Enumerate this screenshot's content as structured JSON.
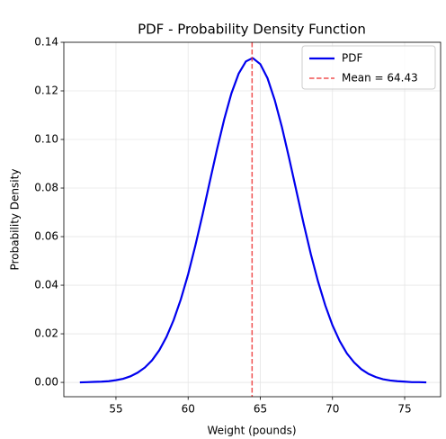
{
  "chart_data": {
    "type": "line",
    "title": "PDF - Probability Density Function",
    "xlabel": "Weight (pounds)",
    "ylabel": "Probability Density",
    "x": [
      52.5,
      53,
      53.5,
      54,
      54.5,
      55,
      55.5,
      56,
      56.5,
      57,
      57.5,
      58,
      58.5,
      59,
      59.5,
      60,
      60.5,
      61,
      61.5,
      62,
      62.5,
      63,
      63.5,
      64,
      64.43,
      64.5,
      65,
      65.5,
      66,
      66.5,
      67,
      67.5,
      68,
      68.5,
      69,
      69.5,
      70,
      70.5,
      71,
      71.5,
      72,
      72.5,
      73,
      73.5,
      74,
      74.5,
      75,
      75.5,
      76,
      76.5
    ],
    "series": [
      {
        "name": "PDF",
        "color": "#0000ee",
        "values": [
          0.0,
          0.0001,
          0.0002,
          0.0003,
          0.0005,
          0.0009,
          0.0015,
          0.0025,
          0.004,
          0.0061,
          0.0091,
          0.0132,
          0.0187,
          0.0257,
          0.0343,
          0.0445,
          0.0563,
          0.0691,
          0.0826,
          0.0959,
          0.1083,
          0.119,
          0.1271,
          0.1321,
          0.1334,
          0.1334,
          0.131,
          0.1252,
          0.1162,
          0.105,
          0.0922,
          0.0788,
          0.0654,
          0.0528,
          0.0415,
          0.0317,
          0.0235,
          0.017,
          0.0119,
          0.0082,
          0.0054,
          0.0035,
          0.0022,
          0.0013,
          0.0008,
          0.0005,
          0.0003,
          0.0001,
          0.0001,
          0.0
        ]
      }
    ],
    "mean_line": {
      "value": 64.43,
      "label": "Mean = 64.43",
      "color": "#ee3333"
    },
    "xlim": [
      51.39,
      77.49
    ],
    "ylim": [
      -0.0059,
      0.14
    ],
    "xticks": [
      55,
      60,
      65,
      70,
      75
    ],
    "yticks": [
      {
        "value": 0,
        "label": "0.00"
      },
      {
        "value": 0.02,
        "label": "0.02"
      },
      {
        "value": 0.04,
        "label": "0.04"
      },
      {
        "value": 0.06,
        "label": "0.06"
      },
      {
        "value": 0.08,
        "label": "0.08"
      },
      {
        "value": 0.1,
        "label": "0.10"
      },
      {
        "value": 0.12,
        "label": "0.12"
      },
      {
        "value": 0.14,
        "label": "0.14"
      }
    ],
    "grid": true,
    "legend": "upper right"
  }
}
